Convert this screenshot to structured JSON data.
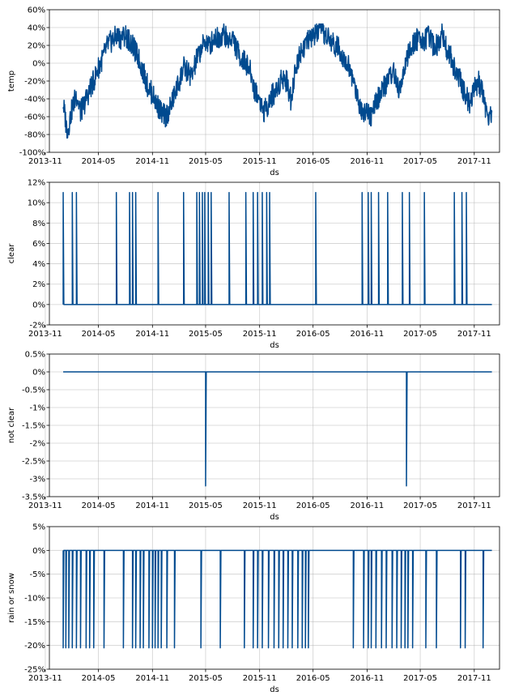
{
  "chart_data": [
    {
      "id": "temp",
      "type": "line",
      "title": "",
      "xlabel": "ds",
      "ylabel": "temp",
      "ylim": [
        -100,
        60
      ],
      "yticks": [
        "-100%",
        "-80%",
        "-60%",
        "-40%",
        "-20%",
        "0%",
        "20%",
        "40%",
        "60%"
      ],
      "ytick_values": [
        -100,
        -80,
        -60,
        -40,
        -20,
        0,
        20,
        40,
        60
      ],
      "xlim": [
        "2013-11-15",
        "2018-01-26"
      ],
      "xticks": [
        "2013-11",
        "2014-05",
        "2014-11",
        "2015-05",
        "2015-11",
        "2016-05",
        "2016-11",
        "2017-05",
        "2017-11"
      ],
      "grid": true,
      "color": "#004a8f",
      "x_start": "2014-01-01",
      "x_end": "2017-12-31",
      "series": [
        {
          "x": [
            "2014-01-01",
            "2014-01-15",
            "2014-02-01",
            "2014-02-15",
            "2014-03-01",
            "2014-03-15",
            "2014-04-01",
            "2014-04-15",
            "2014-05-01",
            "2014-05-15",
            "2014-06-01",
            "2014-06-15",
            "2014-07-01",
            "2014-07-15",
            "2014-08-01",
            "2014-08-15",
            "2014-09-01",
            "2014-09-15",
            "2014-10-01",
            "2014-10-15",
            "2014-11-01",
            "2014-11-15",
            "2014-12-01",
            "2014-12-15",
            "2015-01-01",
            "2015-01-15",
            "2015-02-01",
            "2015-02-15",
            "2015-03-01",
            "2015-03-15",
            "2015-04-01",
            "2015-04-15",
            "2015-05-01",
            "2015-05-15",
            "2015-06-01",
            "2015-06-15",
            "2015-07-01",
            "2015-07-15",
            "2015-08-01",
            "2015-08-15",
            "2015-09-01",
            "2015-09-15",
            "2015-10-01",
            "2015-10-15",
            "2015-11-01",
            "2015-11-15",
            "2015-12-01",
            "2015-12-15",
            "2016-01-01",
            "2016-01-15",
            "2016-02-01",
            "2016-02-15",
            "2016-03-01",
            "2016-03-15",
            "2016-04-01",
            "2016-04-15",
            "2016-05-01",
            "2016-05-15",
            "2016-06-01",
            "2016-06-15",
            "2016-07-01",
            "2016-07-15",
            "2016-08-01",
            "2016-08-15",
            "2016-09-01",
            "2016-09-15",
            "2016-10-01",
            "2016-10-15",
            "2016-11-01",
            "2016-11-15",
            "2016-12-01",
            "2016-12-15",
            "2017-01-01",
            "2017-01-15",
            "2017-02-01",
            "2017-02-15",
            "2017-03-01",
            "2017-03-15",
            "2017-04-01",
            "2017-04-15",
            "2017-05-01",
            "2017-05-15",
            "2017-06-01",
            "2017-06-15",
            "2017-07-01",
            "2017-07-15",
            "2017-08-01",
            "2017-08-15",
            "2017-09-01",
            "2017-09-15",
            "2017-10-01",
            "2017-10-15",
            "2017-11-01",
            "2017-11-15",
            "2017-12-01",
            "2017-12-15",
            "2017-12-31"
          ],
          "y": [
            -45,
            -78,
            -50,
            -35,
            -55,
            -45,
            -30,
            -20,
            -5,
            5,
            20,
            25,
            30,
            28,
            32,
            25,
            15,
            5,
            -10,
            -25,
            -35,
            -45,
            -55,
            -60,
            -50,
            -35,
            -20,
            -5,
            -10,
            -15,
            5,
            15,
            25,
            20,
            30,
            28,
            35,
            25,
            30,
            15,
            5,
            0,
            -10,
            -30,
            -40,
            -55,
            -45,
            -35,
            -30,
            -15,
            -20,
            -40,
            -10,
            10,
            20,
            25,
            30,
            35,
            35,
            30,
            25,
            20,
            15,
            5,
            -5,
            -20,
            -40,
            -55,
            -50,
            -60,
            -45,
            -35,
            -25,
            -15,
            -10,
            -30,
            -20,
            5,
            15,
            25,
            30,
            25,
            30,
            20,
            22,
            35,
            15,
            5,
            -10,
            -20,
            -35,
            -45,
            -30,
            -20,
            -35,
            -60,
            -55
          ]
        }
      ]
    },
    {
      "id": "clear",
      "type": "line",
      "title": "",
      "xlabel": "ds",
      "ylabel": "clear",
      "ylim": [
        -2,
        12
      ],
      "yticks": [
        "-2%",
        "0%",
        "2%",
        "4%",
        "6%",
        "8%",
        "10%",
        "12%"
      ],
      "ytick_values": [
        -2,
        0,
        2,
        4,
        6,
        8,
        10,
        12
      ],
      "xlim": [
        "2013-11-15",
        "2018-01-26"
      ],
      "xticks": [
        "2013-11",
        "2014-05",
        "2014-11",
        "2015-05",
        "2015-11",
        "2016-05",
        "2016-11",
        "2017-05",
        "2017-11"
      ],
      "grid": true,
      "color": "#004a8f",
      "x_start": "2014-01-01",
      "x_end": "2017-12-31",
      "baseline": 0,
      "spike_value": 11,
      "spikes": [
        "2014-01-01",
        "2014-02-01",
        "2014-02-15",
        "2014-07-01",
        "2014-08-15",
        "2014-08-25",
        "2014-09-05",
        "2014-11-20",
        "2015-02-15",
        "2015-04-01",
        "2015-04-10",
        "2015-04-20",
        "2015-04-28",
        "2015-05-10",
        "2015-05-20",
        "2015-07-20",
        "2015-09-15",
        "2015-10-10",
        "2015-10-25",
        "2015-11-10",
        "2015-11-25",
        "2015-12-05",
        "2016-05-10",
        "2016-10-15",
        "2016-11-05",
        "2016-11-15",
        "2016-12-10",
        "2017-01-10",
        "2017-03-01",
        "2017-03-25",
        "2017-05-15",
        "2017-08-25",
        "2017-09-20",
        "2017-10-05"
      ]
    },
    {
      "id": "not-clear",
      "type": "line",
      "title": "",
      "xlabel": "ds",
      "ylabel": "not clear",
      "ylim": [
        -3.5,
        0.5
      ],
      "yticks": [
        "-3.5%",
        "-3%",
        "-2.5%",
        "-2%",
        "-1.5%",
        "-1%",
        "-0.5%",
        "0%",
        "0.5%"
      ],
      "ytick_values": [
        -3.5,
        -3,
        -2.5,
        -2,
        -1.5,
        -1,
        -0.5,
        0,
        0.5
      ],
      "xlim": [
        "2013-11-15",
        "2018-01-26"
      ],
      "xticks": [
        "2013-11",
        "2014-05",
        "2014-11",
        "2015-05",
        "2015-11",
        "2016-05",
        "2016-11",
        "2017-05",
        "2017-11"
      ],
      "grid": true,
      "color": "#004a8f",
      "x_start": "2014-01-01",
      "x_end": "2017-12-31",
      "baseline": 0,
      "spike_value": -3.2,
      "spikes": [
        "2015-05-01",
        "2017-03-15"
      ]
    },
    {
      "id": "rain-or-snow",
      "type": "line",
      "title": "",
      "xlabel": "ds",
      "ylabel": "rain or snow",
      "ylim": [
        -25,
        5
      ],
      "yticks": [
        "-25%",
        "-20%",
        "-15%",
        "-10%",
        "-5%",
        "0%",
        "5%"
      ],
      "ytick_values": [
        -25,
        -20,
        -15,
        -10,
        -5,
        0,
        5
      ],
      "xlim": [
        "2013-11-15",
        "2018-01-26"
      ],
      "xticks": [
        "2013-11",
        "2014-05",
        "2014-11",
        "2015-05",
        "2015-11",
        "2016-05",
        "2016-11",
        "2017-05",
        "2017-11"
      ],
      "grid": true,
      "color": "#004a8f",
      "x_start": "2014-01-01",
      "x_end": "2017-12-31",
      "baseline": 0,
      "spike_value": -20.5,
      "spikes": [
        "2014-01-01",
        "2014-01-10",
        "2014-01-20",
        "2014-02-01",
        "2014-02-15",
        "2014-03-01",
        "2014-03-20",
        "2014-04-01",
        "2014-04-15",
        "2014-05-20",
        "2014-07-25",
        "2014-08-25",
        "2014-09-05",
        "2014-09-20",
        "2014-10-01",
        "2014-10-20",
        "2014-11-01",
        "2014-11-10",
        "2014-11-20",
        "2014-12-01",
        "2014-12-20",
        "2015-01-15",
        "2015-04-15",
        "2015-06-20",
        "2015-09-10",
        "2015-10-10",
        "2015-10-25",
        "2015-11-10",
        "2015-12-01",
        "2015-12-20",
        "2016-01-05",
        "2016-01-20",
        "2016-02-05",
        "2016-02-20",
        "2016-03-10",
        "2016-03-25",
        "2016-04-05",
        "2016-04-15",
        "2016-09-15",
        "2016-10-20",
        "2016-11-05",
        "2016-11-15",
        "2016-12-01",
        "2016-12-20",
        "2017-01-05",
        "2017-01-25",
        "2017-02-10",
        "2017-02-25",
        "2017-03-10",
        "2017-03-20",
        "2017-04-05",
        "2017-05-20",
        "2017-06-25",
        "2017-09-15",
        "2017-10-01",
        "2017-12-01"
      ]
    }
  ]
}
